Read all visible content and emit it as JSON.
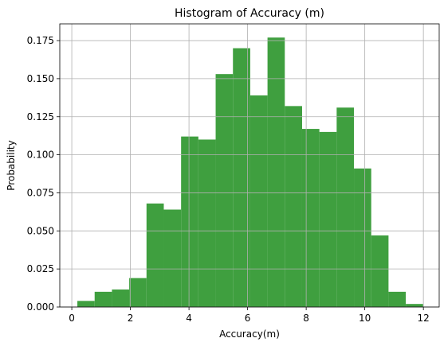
{
  "chart_data": {
    "type": "histogram",
    "title": "Histogram of Accuracy (m)",
    "xlabel": "Accuracy(m)",
    "ylabel": "Probability",
    "bins": [
      0.19,
      0.78,
      1.37,
      1.96,
      2.55,
      3.14,
      3.73,
      4.32,
      4.91,
      5.5,
      6.09,
      6.68,
      7.27,
      7.86,
      8.45,
      9.04,
      9.63,
      10.22,
      10.81,
      11.4,
      11.99
    ],
    "values": [
      0.004,
      0.01,
      0.0115,
      0.019,
      0.068,
      0.064,
      0.112,
      0.11,
      0.153,
      0.17,
      0.139,
      0.177,
      0.132,
      0.117,
      0.115,
      0.131,
      0.091,
      0.047,
      0.01,
      0.002
    ],
    "color": "#3f9f3f",
    "xlim": [
      -0.41,
      12.54
    ],
    "ylim": [
      0,
      0.186
    ],
    "xticks": [
      0,
      2,
      4,
      6,
      8,
      10,
      12
    ],
    "yticks": [
      {
        "value": 0,
        "label": "0.000"
      },
      {
        "value": 0.025,
        "label": "0.025"
      },
      {
        "value": 0.05,
        "label": "0.050"
      },
      {
        "value": 0.075,
        "label": "0.075"
      },
      {
        "value": 0.1,
        "label": "0.100"
      },
      {
        "value": 0.125,
        "label": "0.125"
      },
      {
        "value": 0.15,
        "label": "0.150"
      },
      {
        "value": 0.175,
        "label": "0.175"
      }
    ],
    "grid": true
  }
}
